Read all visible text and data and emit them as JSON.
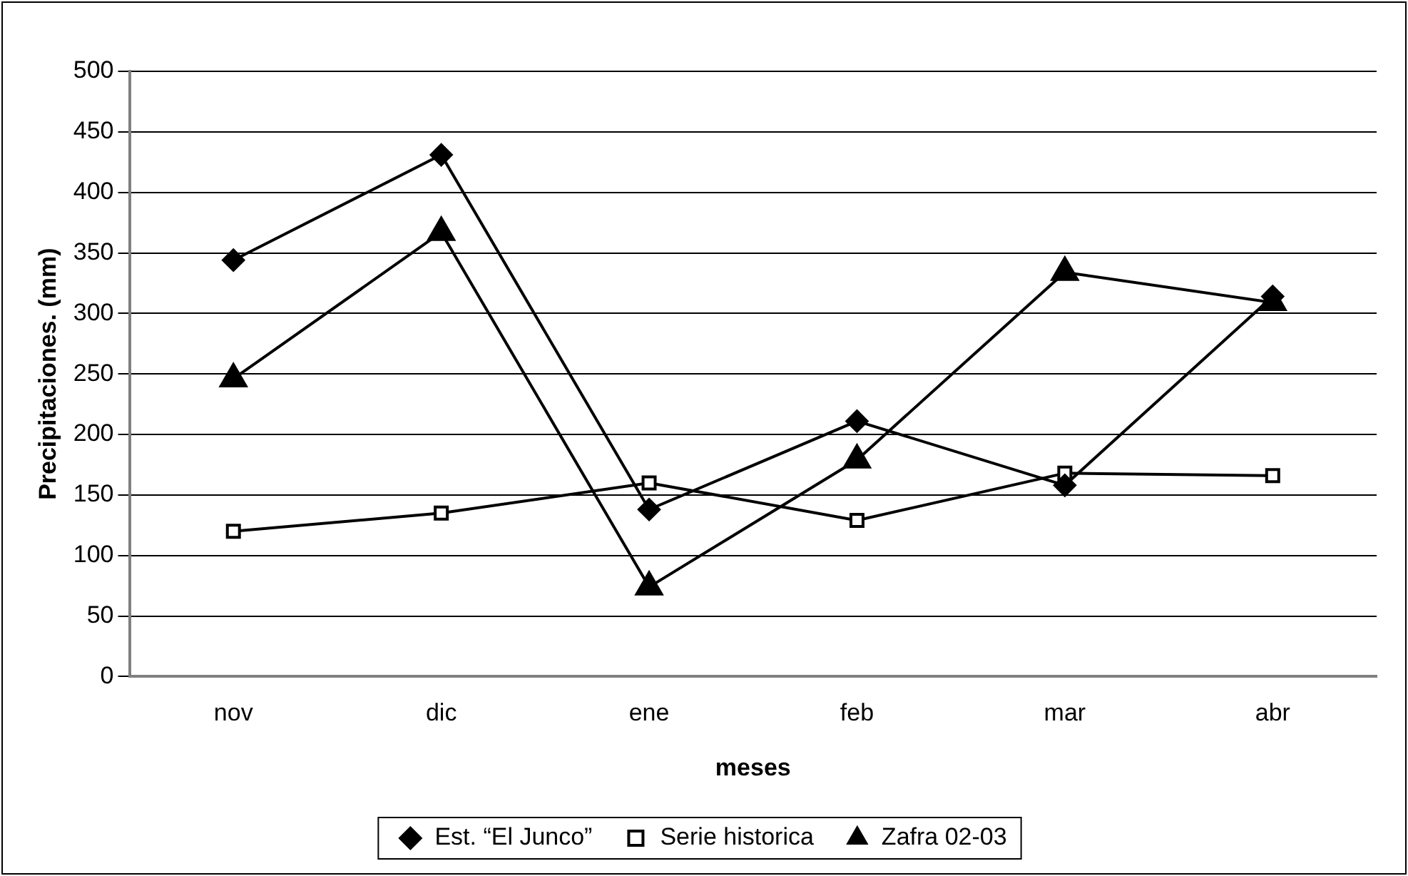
{
  "chart_data": {
    "type": "line",
    "xlabel": "meses",
    "ylabel": "Precipitaciones. (mm)",
    "categories": [
      "nov",
      "dic",
      "ene",
      "feb",
      "mar",
      "abr"
    ],
    "series": [
      {
        "name": "Est. “El Junco”",
        "color": "#000000",
        "marker": "diamond",
        "values": [
          344,
          431,
          138,
          211,
          158,
          314
        ]
      },
      {
        "name": "Serie historica",
        "color": "#000000",
        "marker": "square",
        "values": [
          120,
          135,
          160,
          129,
          168,
          166
        ]
      },
      {
        "name": "Zafra 02-03",
        "color": "#000000",
        "marker": "triangle",
        "values": [
          246,
          367,
          74,
          179,
          334,
          309
        ]
      }
    ],
    "ylim": [
      0,
      500
    ],
    "yticks": [
      0,
      50,
      100,
      150,
      200,
      250,
      300,
      350,
      400,
      450,
      500
    ],
    "grid": "y",
    "legend": "bottom",
    "line_style": "solid"
  }
}
